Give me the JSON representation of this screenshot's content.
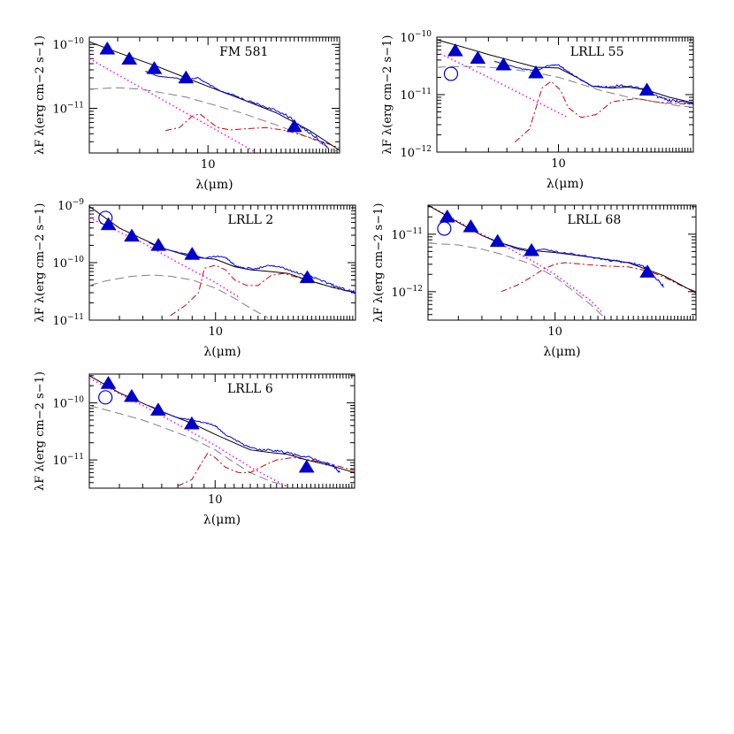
{
  "colors": {
    "model": "#000000",
    "spectrum": "#0000ff",
    "photometry": "#0000cc",
    "photosphere": "#ff00ff",
    "inner_component": "#808080",
    "silicate_component": "#cc0000"
  },
  "chart_data": [
    {
      "type": "line",
      "label": "FM 581",
      "xlabel": "λ(μm)",
      "ylabel": "λF λ(erg cm−2 s−1)",
      "x_scale": "log",
      "y_scale": "log",
      "xlim": [
        3.0,
        38.0
      ],
      "ylim": [
        2e-12,
        1.3e-10
      ],
      "x_ticks": [
        10
      ],
      "x_tick_labels": [
        "10"
      ],
      "y_ticks": [
        1e-11,
        1e-10
      ],
      "y_tick_labels": [
        "10−11",
        "10−10"
      ],
      "photometry": {
        "x": [
          3.6,
          4.5,
          5.8,
          8.0,
          24.0
        ],
        "y": [
          8.5e-11,
          5.9e-11,
          4.2e-11,
          3e-11,
          5.2e-12
        ]
      },
      "series": [
        {
          "kind": "model",
          "x": [
            3.0,
            4.0,
            6.0,
            8.0,
            10.0,
            14.0,
            20.0,
            28.0,
            38.0
          ],
          "y": [
            1.1e-10,
            7.5e-11,
            4.5e-11,
            3e-11,
            2.2e-11,
            1.4e-11,
            8.5e-12,
            4.5e-12,
            2.2e-12
          ]
        },
        {
          "kind": "spectrum",
          "x": [
            5.3,
            6.0,
            7.0,
            8.0,
            9.0,
            10.0,
            11.5,
            13.0,
            15.0,
            18.0,
            22.0,
            26.0,
            30.0,
            34.0
          ],
          "y": [
            3.8e-11,
            3.2e-11,
            3e-11,
            2.8e-11,
            3e-11,
            2.4e-11,
            1.8e-11,
            1.6e-11,
            1.3e-11,
            1.05e-11,
            8e-12,
            5e-12,
            3.5e-12,
            2.4e-12
          ]
        },
        {
          "kind": "photosphere",
          "x": [
            3.0,
            6.0,
            10.0,
            15.0,
            20.0
          ],
          "y": [
            6e-11,
            1.5e-11,
            5.4e-12,
            2.4e-12,
            1.35e-12
          ]
        },
        {
          "kind": "inner_component",
          "x": [
            3.0,
            4.0,
            5.0,
            6.0,
            8.0,
            10.0,
            14.0,
            20.0,
            28.0,
            38.0
          ],
          "y": [
            2e-11,
            2.1e-11,
            2e-11,
            1.8e-11,
            1.5e-11,
            1.2e-11,
            8.5e-12,
            5.5e-12,
            3.5e-12,
            2e-12
          ]
        },
        {
          "kind": "silicate_component",
          "x": [
            6.5,
            7.5,
            8.5,
            9.2,
            10.0,
            11.0,
            12.5,
            15.0,
            18.0,
            22.0,
            26.0,
            32.0,
            38.0
          ],
          "y": [
            4.5e-12,
            5e-12,
            7.5e-12,
            8.2e-12,
            6.5e-12,
            5e-12,
            4.6e-12,
            4.8e-12,
            5e-12,
            4.5e-12,
            3.8e-12,
            3e-12,
            2.4e-12
          ]
        }
      ]
    },
    {
      "type": "line",
      "label": "LRLL 55",
      "xlabel": "λ(μm)",
      "ylabel": "λF λ(erg cm−2 s−1)",
      "x_scale": "log",
      "y_scale": "log",
      "xlim": [
        3.0,
        38.0
      ],
      "ylim": [
        1e-12,
        1e-10
      ],
      "x_ticks": [
        10
      ],
      "x_tick_labels": [
        "10"
      ],
      "y_ticks": [
        1e-12,
        1e-11,
        1e-10
      ],
      "y_tick_labels": [
        "10−12",
        "10−11",
        "10−10"
      ],
      "photometry": {
        "x": [
          3.6,
          4.5,
          5.8,
          8.0,
          24.0
        ],
        "y": [
          5.8e-11,
          4.3e-11,
          3.3e-11,
          2.4e-11,
          1.2e-11
        ]
      },
      "open_photometry": {
        "x": [
          3.45
        ],
        "y": [
          2.3e-11
        ]
      },
      "series": [
        {
          "kind": "model",
          "x": [
            3.0,
            4.0,
            5.0,
            6.0,
            8.0,
            10.0,
            12.0,
            14.0,
            17.0,
            20.0,
            24.0,
            30.0,
            38.0
          ],
          "y": [
            9e-11,
            6.5e-11,
            5e-11,
            4.1e-11,
            3e-11,
            2.9e-11,
            2e-11,
            1.4e-11,
            1.3e-11,
            1.35e-11,
            1.2e-11,
            9e-12,
            7.2e-12
          ]
        },
        {
          "kind": "spectrum",
          "x": [
            5.3,
            6.0,
            7.0,
            8.0,
            9.0,
            10.0,
            11.0,
            12.5,
            14.0,
            16.0,
            18.5,
            21.0,
            24.0,
            27.0,
            30.0,
            34.0,
            38.0
          ],
          "y": [
            3.8e-11,
            3.3e-11,
            2.8e-11,
            2.6e-11,
            3.2e-11,
            3.3e-11,
            2.5e-11,
            1.8e-11,
            1.4e-11,
            1.35e-11,
            1.45e-11,
            1.35e-11,
            1.2e-11,
            9e-12,
            8e-12,
            7.5e-12,
            7e-12
          ]
        },
        {
          "kind": "photosphere",
          "x": [
            3.0,
            5.0,
            7.0,
            9.0,
            11.0
          ],
          "y": [
            5.5e-11,
            2e-11,
            1e-11,
            6e-12,
            4e-12
          ]
        },
        {
          "kind": "inner_component",
          "x": [
            3.0,
            4.0,
            5.0,
            6.0,
            7.0,
            8.0,
            10.0,
            12.0,
            15.0,
            20.0,
            26.0,
            32.0,
            38.0
          ],
          "y": [
            3e-11,
            3.1e-11,
            3e-11,
            2.8e-11,
            2.6e-11,
            2.4e-11,
            2e-11,
            1.6e-11,
            1.2e-11,
            9e-12,
            7.5e-12,
            6.5e-12,
            6e-12
          ]
        },
        {
          "kind": "silicate_component",
          "x": [
            6.5,
            7.5,
            8.5,
            9.3,
            10.2,
            11.0,
            12.5,
            14.5,
            17.0,
            19.0,
            22.0,
            26.0,
            32.0,
            38.0
          ],
          "y": [
            1.5e-12,
            2.5e-12,
            1.3e-11,
            1.7e-11,
            1.2e-11,
            6e-12,
            4e-12,
            4.5e-12,
            7.5e-12,
            8e-12,
            8.5e-12,
            7.5e-12,
            7e-12,
            6.8e-12
          ]
        }
      ]
    },
    {
      "type": "line",
      "label": "LRLL 2",
      "xlabel": "λ(μm)",
      "ylabel": "λF λ(erg cm−2 s−1)",
      "x_scale": "log",
      "y_scale": "log",
      "xlim": [
        3.0,
        38.0
      ],
      "ylim": [
        1e-11,
        1e-09
      ],
      "x_ticks": [
        10
      ],
      "x_tick_labels": [
        "10"
      ],
      "y_ticks": [
        1e-11,
        1e-10,
        1e-09
      ],
      "y_tick_labels": [
        "10−11",
        "10−10",
        "10−9"
      ],
      "photometry": {
        "x": [
          3.6,
          4.5,
          5.8,
          8.0,
          24.0
        ],
        "y": [
          4.6e-10,
          2.9e-10,
          2e-10,
          1.4e-10,
          5.5e-11
        ]
      },
      "open_photometry": {
        "x": [
          3.5
        ],
        "y": [
          6e-10
        ]
      },
      "series": [
        {
          "kind": "model",
          "x": [
            3.0,
            4.0,
            6.0,
            8.0,
            10.0,
            12.0,
            14.0,
            17.0,
            20.0,
            24.0,
            30.0,
            38.0
          ],
          "y": [
            9.5e-10,
            4e-10,
            1.8e-10,
            1.25e-10,
            1.15e-10,
            8.5e-11,
            7.5e-11,
            7e-11,
            6.5e-11,
            5e-11,
            3.8e-11,
            3e-11
          ]
        },
        {
          "kind": "spectrum",
          "x": [
            5.3,
            6.0,
            7.0,
            8.0,
            9.0,
            10.0,
            11.0,
            12.0,
            13.0,
            15.0,
            17.0,
            19.0,
            22.0,
            26.0,
            30.0,
            34.0,
            38.0
          ],
          "y": [
            2.2e-10,
            1.8e-10,
            1.5e-10,
            1.35e-10,
            1.2e-10,
            1.3e-10,
            1.25e-10,
            9e-11,
            8e-11,
            8e-11,
            9e-11,
            8e-11,
            6.5e-11,
            5.5e-11,
            4.2e-11,
            3.5e-11,
            3e-11
          ]
        },
        {
          "kind": "photosphere",
          "x": [
            3.0,
            5.0,
            7.0,
            10.0,
            12.5
          ],
          "y": [
            6e-10,
            2.2e-10,
            1e-10,
            4.5e-11,
            2.5e-11
          ]
        },
        {
          "kind": "inner_component",
          "x": [
            3.0,
            3.5,
            4.5,
            5.5,
            6.5,
            8.0,
            10.0,
            12.0,
            14.0,
            16.5
          ],
          "y": [
            4e-11,
            4.8e-11,
            5.8e-11,
            6.1e-11,
            5.8e-11,
            5e-11,
            3.6e-11,
            2.4e-11,
            1.6e-11,
            1.1e-11
          ]
        },
        {
          "kind": "silicate_component",
          "x": [
            6.5,
            7.5,
            8.5,
            9.0,
            10.0,
            11.0,
            12.0,
            13.5,
            15.0,
            17.0,
            19.0,
            22.0,
            26.0,
            32.0,
            38.0
          ],
          "y": [
            1.2e-11,
            1.8e-11,
            3e-11,
            8e-11,
            9e-11,
            7.5e-11,
            5e-11,
            4e-11,
            4e-11,
            6e-11,
            6.5e-11,
            5.5e-11,
            4.5e-11,
            3.5e-11,
            3e-11
          ]
        }
      ]
    },
    {
      "type": "line",
      "label": "LRLL 68",
      "xlabel": "λ(μm)",
      "ylabel": "λF λ(erg cm−2 s−1)",
      "x_scale": "log",
      "y_scale": "log",
      "xlim": [
        3.0,
        38.0
      ],
      "ylim": [
        3.2e-13,
        3.2e-11
      ],
      "x_ticks": [
        10
      ],
      "x_tick_labels": [
        "10"
      ],
      "y_ticks": [
        1e-12,
        1e-11
      ],
      "y_tick_labels": [
        "10−12",
        "10−11"
      ],
      "photometry": {
        "x": [
          3.6,
          4.5,
          5.8,
          8.0,
          24.0
        ],
        "y": [
          2e-11,
          1.35e-11,
          7.5e-12,
          5.2e-12,
          2.2e-12
        ]
      },
      "open_photometry": {
        "x": [
          3.5
        ],
        "y": [
          1.25e-11
        ]
      },
      "series": [
        {
          "kind": "model",
          "x": [
            3.0,
            4.0,
            5.0,
            6.0,
            7.0,
            8.0,
            10.0,
            14.0,
            20.0,
            28.0,
            38.0
          ],
          "y": [
            3.2e-11,
            1.6e-11,
            9.5e-12,
            7e-12,
            5.8e-12,
            5.2e-12,
            4.8e-12,
            4e-12,
            3.2e-12,
            1.9e-12,
            9.5e-13
          ]
        },
        {
          "kind": "spectrum",
          "x": [
            5.3,
            6.0,
            7.0,
            8.0,
            9.0,
            10.0,
            12.0,
            14.0,
            17.0,
            20.0,
            23.0,
            25.0,
            27.0,
            28.0
          ],
          "y": [
            8.5e-12,
            7e-12,
            5.5e-12,
            5e-12,
            5.5e-12,
            5e-12,
            4.5e-12,
            4e-12,
            3.5e-12,
            3.2e-12,
            2.8e-12,
            2e-12,
            1.5e-12,
            1.2e-12
          ]
        },
        {
          "kind": "photosphere",
          "x": [
            3.0,
            5.0,
            8.0,
            10.0,
            14.0,
            15.5
          ],
          "y": [
            3.2e-11,
            1e-11,
            3.5e-12,
            2e-12,
            7e-13,
            4.5e-13
          ]
        },
        {
          "kind": "inner_component",
          "x": [
            3.0,
            4.0,
            5.0,
            6.0,
            8.0,
            10.0,
            12.0,
            14.0,
            16.0
          ],
          "y": [
            7e-12,
            6.5e-12,
            5.5e-12,
            4.5e-12,
            3e-12,
            1.8e-12,
            1e-12,
            6e-13,
            3.5e-13
          ]
        },
        {
          "kind": "silicate_component",
          "x": [
            6.0,
            7.0,
            8.0,
            9.0,
            10.0,
            11.0,
            13.0,
            16.0,
            20.0,
            24.0,
            28.0,
            34.0,
            38.0
          ],
          "y": [
            1e-12,
            1.3e-12,
            1.8e-12,
            2.5e-12,
            3e-12,
            3.2e-12,
            3e-12,
            2.8e-12,
            2.7e-12,
            2.3e-12,
            1.8e-12,
            1.2e-12,
            1e-12
          ]
        }
      ]
    },
    {
      "type": "line",
      "label": "LRLL 6",
      "xlabel": "λ(μm)",
      "ylabel": "λF λ(erg cm−2 s−1)",
      "x_scale": "log",
      "y_scale": "log",
      "xlim": [
        3.0,
        38.0
      ],
      "ylim": [
        3.2e-12,
        3.2e-10
      ],
      "x_ticks": [
        10
      ],
      "x_tick_labels": [
        "10"
      ],
      "y_ticks": [
        1e-11,
        1e-10
      ],
      "y_tick_labels": [
        "10−11",
        "10−10"
      ],
      "photometry": {
        "x": [
          3.6,
          4.5,
          5.8,
          8.0,
          24.0
        ],
        "y": [
          2.2e-10,
          1.3e-10,
          7.5e-11,
          4.3e-11,
          7.5e-12
        ]
      },
      "open_photometry": {
        "x": [
          3.5
        ],
        "y": [
          1.25e-10
        ]
      },
      "series": [
        {
          "kind": "model",
          "x": [
            3.0,
            4.0,
            6.0,
            8.0,
            10.0,
            12.0,
            14.0,
            17.0,
            20.0,
            24.0,
            30.0,
            38.0
          ],
          "y": [
            3e-10,
            1.5e-10,
            7e-11,
            4.4e-11,
            2.8e-11,
            2e-11,
            1.5e-11,
            1.35e-11,
            1.25e-11,
            1e-11,
            8e-12,
            6e-12
          ]
        },
        {
          "kind": "spectrum",
          "x": [
            5.3,
            6.0,
            7.0,
            8.0,
            9.0,
            10.0,
            11.0,
            13.0,
            15.0,
            17.0,
            19.0,
            22.0,
            25.0,
            28.0,
            31.0,
            33.0
          ],
          "y": [
            9e-11,
            7e-11,
            5.5e-11,
            5e-11,
            4.5e-11,
            4e-11,
            2.8e-11,
            1.9e-11,
            1.5e-11,
            1.5e-11,
            1.4e-11,
            1.2e-11,
            1.1e-11,
            9e-12,
            8e-12,
            6e-12
          ]
        },
        {
          "kind": "photosphere",
          "x": [
            3.0,
            5.0,
            7.0,
            10.0,
            14.0,
            17.0,
            20.0
          ],
          "y": [
            2.7e-10,
            9e-11,
            4.2e-11,
            1.8e-11,
            7.5e-12,
            4.8e-12,
            3.4e-12
          ]
        },
        {
          "kind": "inner_component",
          "x": [
            3.0,
            4.0,
            5.0,
            6.0,
            8.0,
            10.0,
            12.0,
            14.0,
            17.0,
            20.0
          ],
          "y": [
            9e-11,
            6.5e-11,
            5e-11,
            3.8e-11,
            2.4e-11,
            1.5e-11,
            9e-12,
            6e-12,
            4.2e-12,
            3.5e-12
          ]
        },
        {
          "kind": "silicate_component",
          "x": [
            7.0,
            8.0,
            8.8,
            9.3,
            10.0,
            11.0,
            12.5,
            14.0,
            16.0,
            18.0,
            21.0,
            25.0,
            30.0,
            38.0
          ],
          "y": [
            3.5e-12,
            4.5e-12,
            9e-12,
            1.3e-11,
            1.1e-11,
            7.5e-12,
            6e-12,
            6e-12,
            8e-12,
            1e-11,
            1.1e-11,
            1e-11,
            8.5e-12,
            6.5e-12
          ]
        }
      ]
    }
  ]
}
